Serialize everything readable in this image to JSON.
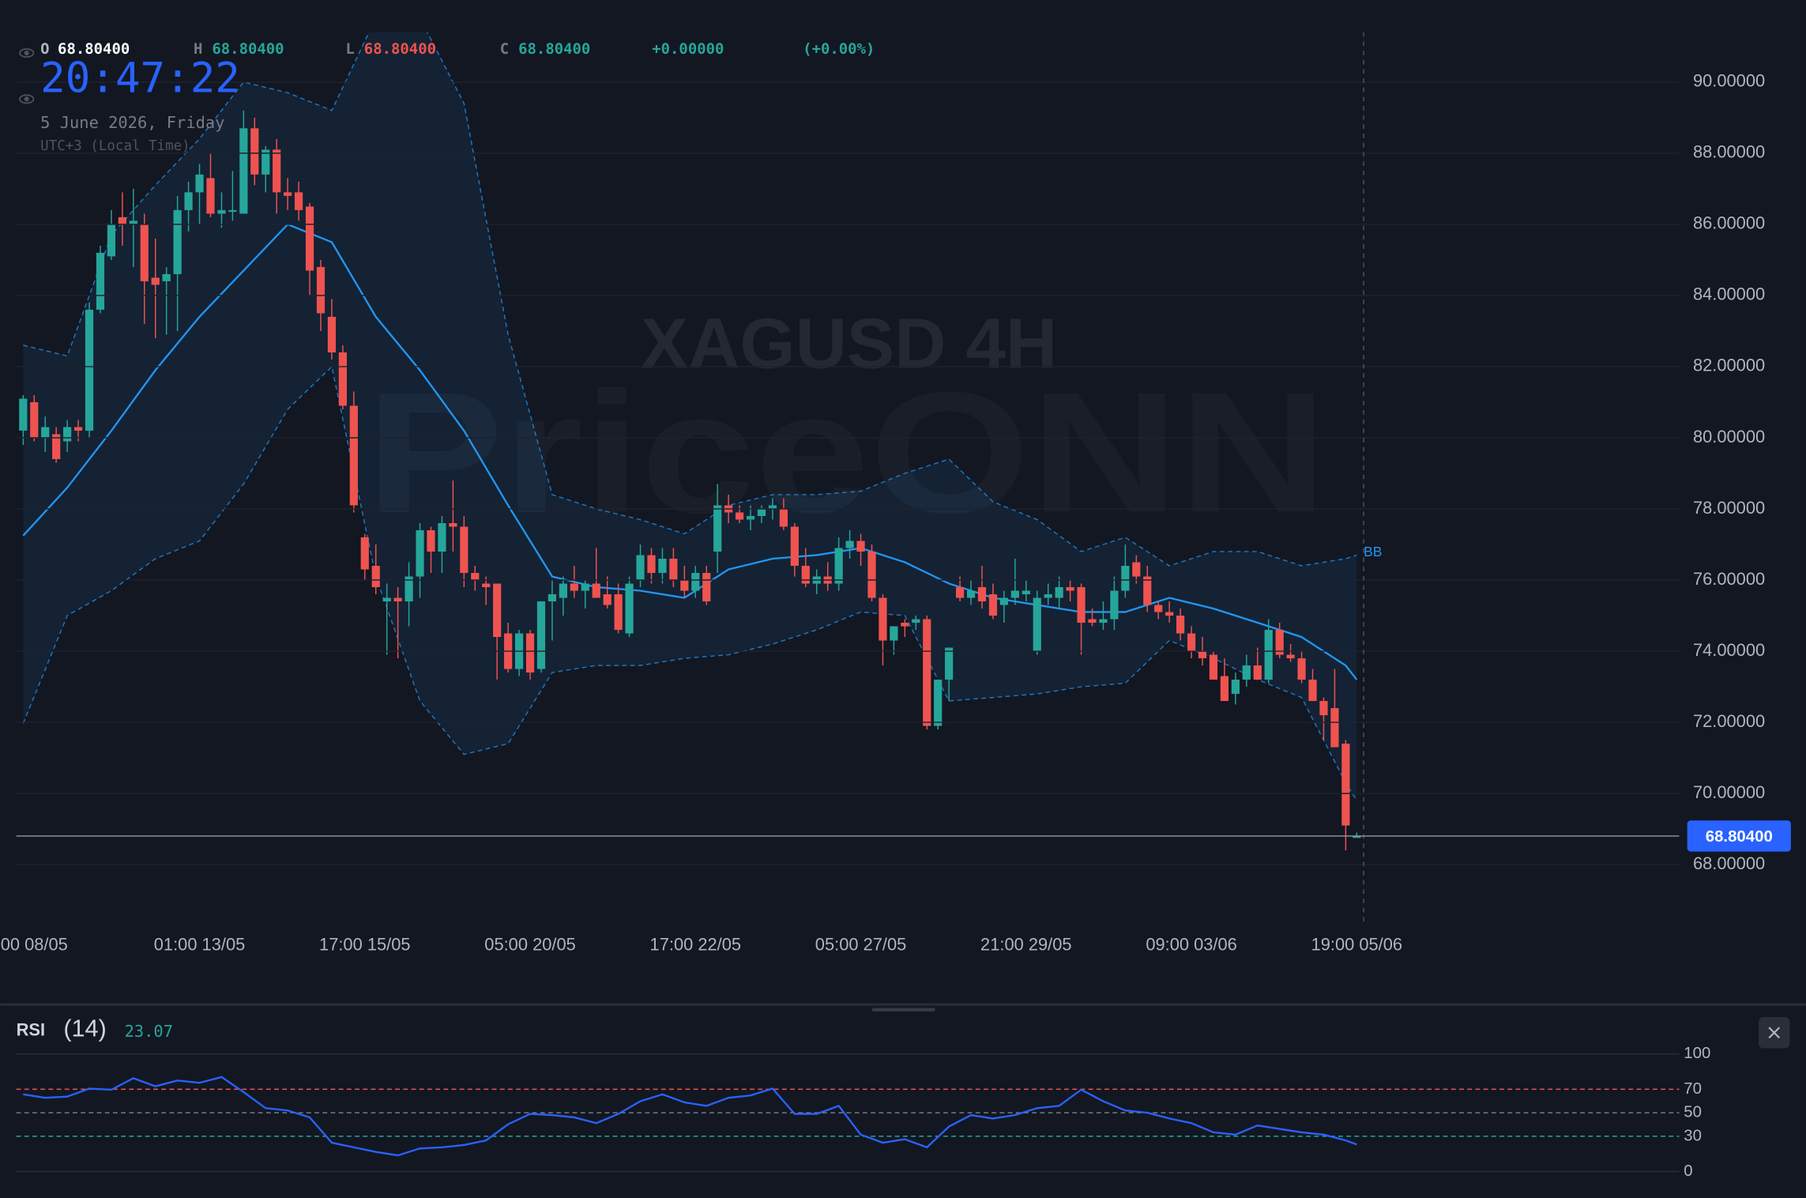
{
  "clock": {
    "time": "20:47:22",
    "date": "5 June 2026, Friday",
    "zone": "UTC+3 (Local Time)"
  },
  "chart_data": [
    {
      "type": "candlestick",
      "title": "XAGUSD 4H",
      "watermark": "PriceONN",
      "legend": {
        "open_label": "O",
        "open": "68.80400",
        "high_label": "H",
        "high": "68.80400",
        "low_label": "L",
        "low": "68.80400",
        "close_label": "C",
        "close": "68.80400",
        "change": "+0.00000",
        "change_pct": "(+0.00%)"
      },
      "up_color": "#26a69a",
      "down_color": "#ef5350",
      "grid": true,
      "ylim": [
        66.4,
        91.4
      ],
      "yticks": [
        {
          "value": 68,
          "label": "68.00000"
        },
        {
          "value": 70,
          "label": "70.00000"
        },
        {
          "value": 72,
          "label": "72.00000"
        },
        {
          "value": 74,
          "label": "74.00000"
        },
        {
          "value": 76,
          "label": "76.00000"
        },
        {
          "value": 78,
          "label": "78.00000"
        },
        {
          "value": 80,
          "label": "80.00000"
        },
        {
          "value": 82,
          "label": "82.00000"
        },
        {
          "value": 84,
          "label": "84.00000"
        },
        {
          "value": 86,
          "label": "86.00000"
        },
        {
          "value": 88,
          "label": "88.00000"
        },
        {
          "value": 90,
          "label": "90.00000"
        }
      ],
      "categories": [
        null,
        "00 08/05",
        null,
        null,
        null,
        null,
        null,
        null,
        null,
        null,
        null,
        null,
        null,
        null,
        null,
        null,
        "01:00 13/05",
        null,
        null,
        null,
        null,
        null,
        null,
        null,
        null,
        null,
        null,
        null,
        null,
        null,
        null,
        "17:00 15/05",
        null,
        null,
        null,
        null,
        null,
        null,
        null,
        null,
        null,
        null,
        null,
        null,
        null,
        null,
        "05:00 20/05",
        null,
        null,
        null,
        null,
        null,
        null,
        null,
        null,
        null,
        null,
        null,
        null,
        null,
        null,
        "17:00 22/05",
        null,
        null,
        null,
        null,
        null,
        null,
        null,
        null,
        null,
        null,
        null,
        null,
        null,
        null,
        "05:00 27/05",
        null,
        null,
        null,
        null,
        null,
        null,
        null,
        null,
        null,
        null,
        null,
        null,
        null,
        null,
        "21:00 29/05",
        null,
        null,
        null,
        null,
        null,
        null,
        null,
        null,
        null,
        null,
        null,
        null,
        null,
        null,
        "09:00 03/06",
        null,
        null,
        null,
        null,
        null,
        null,
        null,
        null,
        null,
        null,
        null,
        null,
        null,
        null,
        "19:00 05/06"
      ],
      "ohlc": [
        [
          80.2,
          81.2,
          79.8,
          81.1
        ],
        [
          81.0,
          81.2,
          79.9,
          80.0
        ],
        [
          80.0,
          80.6,
          79.6,
          80.3
        ],
        [
          80.1,
          80.3,
          79.3,
          79.4
        ],
        [
          79.9,
          80.5,
          79.6,
          80.3
        ],
        [
          80.3,
          80.5,
          79.9,
          80.2
        ],
        [
          80.2,
          83.8,
          80.0,
          83.6
        ],
        [
          83.6,
          85.4,
          83.5,
          85.2
        ],
        [
          85.1,
          86.4,
          85.0,
          86.0
        ],
        [
          86.2,
          86.9,
          85.4,
          86.0
        ],
        [
          86.0,
          87.0,
          84.8,
          86.1
        ],
        [
          86.0,
          86.3,
          83.2,
          84.4
        ],
        [
          84.5,
          85.6,
          82.8,
          84.3
        ],
        [
          84.4,
          84.8,
          82.9,
          84.6
        ],
        [
          84.6,
          86.8,
          83.0,
          86.4
        ],
        [
          86.4,
          87.2,
          85.8,
          86.9
        ],
        [
          86.9,
          87.7,
          86.0,
          87.4
        ],
        [
          87.3,
          88.0,
          86.2,
          86.3
        ],
        [
          86.3,
          86.9,
          85.9,
          86.4
        ],
        [
          86.4,
          87.5,
          86.1,
          86.4
        ],
        [
          86.3,
          89.2,
          86.3,
          88.7
        ],
        [
          88.7,
          89.0,
          87.1,
          87.4
        ],
        [
          87.4,
          88.2,
          86.9,
          88.1
        ],
        [
          88.1,
          88.4,
          86.3,
          86.9
        ],
        [
          86.9,
          87.3,
          86.4,
          86.8
        ],
        [
          86.9,
          87.2,
          86.1,
          86.4
        ],
        [
          86.5,
          86.6,
          84.0,
          84.7
        ],
        [
          84.8,
          85.0,
          83.0,
          83.5
        ],
        [
          83.4,
          83.9,
          82.2,
          82.4
        ],
        [
          82.4,
          82.6,
          80.8,
          80.9
        ],
        [
          80.9,
          81.3,
          77.9,
          78.1
        ],
        [
          77.2,
          77.3,
          76.0,
          76.3
        ],
        [
          76.4,
          77.0,
          75.6,
          75.8
        ],
        [
          75.4,
          75.9,
          73.9,
          75.5
        ],
        [
          75.5,
          75.8,
          73.8,
          75.4
        ],
        [
          75.4,
          76.5,
          74.7,
          76.1
        ],
        [
          76.1,
          77.6,
          75.5,
          77.4
        ],
        [
          77.4,
          77.5,
          76.2,
          76.8
        ],
        [
          76.8,
          77.8,
          76.2,
          77.6
        ],
        [
          77.6,
          78.8,
          76.8,
          77.5
        ],
        [
          77.5,
          77.8,
          75.8,
          76.2
        ],
        [
          76.2,
          76.4,
          75.7,
          76.0
        ],
        [
          75.9,
          76.1,
          75.3,
          75.8
        ],
        [
          75.9,
          75.9,
          73.2,
          74.4
        ],
        [
          74.5,
          74.8,
          73.4,
          73.5
        ],
        [
          73.5,
          74.6,
          73.3,
          74.5
        ],
        [
          74.5,
          74.6,
          73.2,
          73.4
        ],
        [
          73.5,
          75.4,
          73.4,
          75.4
        ],
        [
          75.4,
          76.0,
          74.3,
          75.6
        ],
        [
          75.5,
          76.1,
          75.0,
          75.9
        ],
        [
          75.9,
          76.4,
          75.5,
          75.7
        ],
        [
          75.7,
          76.0,
          75.2,
          75.9
        ],
        [
          75.9,
          76.9,
          75.6,
          75.5
        ],
        [
          75.6,
          76.1,
          75.2,
          75.3
        ],
        [
          75.6,
          75.9,
          74.5,
          74.6
        ],
        [
          74.5,
          76.1,
          74.4,
          75.9
        ],
        [
          76.0,
          77.0,
          75.8,
          76.7
        ],
        [
          76.7,
          76.9,
          75.9,
          76.2
        ],
        [
          76.2,
          76.9,
          75.9,
          76.6
        ],
        [
          76.6,
          76.9,
          75.8,
          76.0
        ],
        [
          76.0,
          76.4,
          75.5,
          75.7
        ],
        [
          75.7,
          76.4,
          75.5,
          76.2
        ],
        [
          76.2,
          76.4,
          75.3,
          75.4
        ],
        [
          76.8,
          78.7,
          76.2,
          78.1
        ],
        [
          78.1,
          78.4,
          77.6,
          77.9
        ],
        [
          77.9,
          78.1,
          77.6,
          77.7
        ],
        [
          77.7,
          78.1,
          77.4,
          77.8
        ],
        [
          77.8,
          78.1,
          77.6,
          78.0
        ],
        [
          78.0,
          78.3,
          77.7,
          78.1
        ],
        [
          78.0,
          78.3,
          77.4,
          77.5
        ],
        [
          77.5,
          77.6,
          76.1,
          76.4
        ],
        [
          76.4,
          76.9,
          75.8,
          75.9
        ],
        [
          75.9,
          76.3,
          75.6,
          76.1
        ],
        [
          76.1,
          76.5,
          75.7,
          75.9
        ],
        [
          75.9,
          77.2,
          75.7,
          76.9
        ],
        [
          76.9,
          77.4,
          76.6,
          77.1
        ],
        [
          77.1,
          77.3,
          76.4,
          76.8
        ],
        [
          76.8,
          77.0,
          75.4,
          75.5
        ],
        [
          75.5,
          75.6,
          73.6,
          74.3
        ],
        [
          74.3,
          74.7,
          73.9,
          74.7
        ],
        [
          74.8,
          74.9,
          74.4,
          74.7
        ],
        [
          74.8,
          75.0,
          74.6,
          74.9
        ],
        [
          74.9,
          75.0,
          71.8,
          71.9
        ],
        [
          71.9,
          73.2,
          71.8,
          73.2
        ],
        [
          73.2,
          74.1,
          72.6,
          74.1
        ],
        [
          75.8,
          76.1,
          75.4,
          75.5
        ],
        [
          75.5,
          76.0,
          75.3,
          75.7
        ],
        [
          75.8,
          76.4,
          75.2,
          75.4
        ],
        [
          75.6,
          75.9,
          74.9,
          75.0
        ],
        [
          75.3,
          75.7,
          74.8,
          75.5
        ],
        [
          75.5,
          76.6,
          75.3,
          75.7
        ],
        [
          75.6,
          76.0,
          75.4,
          75.7
        ],
        [
          74.0,
          75.7,
          73.9,
          75.5
        ],
        [
          75.5,
          75.9,
          75.3,
          75.6
        ],
        [
          75.5,
          76.1,
          75.2,
          75.8
        ],
        [
          75.8,
          76.0,
          75.4,
          75.7
        ],
        [
          75.8,
          75.9,
          73.9,
          74.8
        ],
        [
          74.9,
          75.2,
          74.7,
          74.8
        ],
        [
          74.8,
          75.4,
          74.6,
          74.9
        ],
        [
          74.9,
          76.1,
          74.6,
          75.7
        ],
        [
          75.7,
          77.0,
          75.5,
          76.4
        ],
        [
          76.5,
          76.7,
          75.9,
          76.1
        ],
        [
          76.1,
          76.4,
          75.1,
          75.3
        ],
        [
          75.3,
          75.4,
          74.9,
          75.1
        ],
        [
          75.1,
          75.4,
          74.8,
          75.0
        ],
        [
          75.0,
          75.2,
          74.3,
          74.5
        ],
        [
          74.5,
          74.7,
          73.8,
          74.0
        ],
        [
          74.0,
          74.4,
          73.6,
          73.8
        ],
        [
          73.9,
          74.0,
          73.2,
          73.2
        ],
        [
          73.3,
          73.8,
          72.6,
          72.6
        ],
        [
          72.8,
          73.4,
          72.5,
          73.2
        ],
        [
          73.2,
          73.9,
          73.0,
          73.6
        ],
        [
          73.6,
          74.1,
          73.2,
          73.2
        ],
        [
          73.2,
          74.9,
          73.1,
          74.6
        ],
        [
          74.6,
          74.8,
          73.8,
          73.9
        ],
        [
          73.9,
          74.2,
          73.7,
          73.8
        ],
        [
          73.8,
          74.0,
          73.1,
          73.2
        ],
        [
          73.2,
          73.5,
          72.6,
          72.6
        ],
        [
          72.6,
          72.7,
          71.5,
          72.2
        ],
        [
          72.4,
          73.5,
          71.4,
          71.3
        ],
        [
          71.4,
          71.5,
          68.4,
          69.1
        ],
        [
          68.8,
          68.9,
          68.8,
          68.8
        ]
      ],
      "bands": {
        "name": "BB",
        "color": "#2196f3",
        "x": [
          0,
          4,
          8,
          12,
          16,
          20,
          24,
          28,
          32,
          36,
          40,
          44,
          48,
          52,
          56,
          60,
          64,
          68,
          72,
          76,
          80,
          84,
          88,
          92,
          96,
          100,
          104,
          108,
          112,
          116,
          120,
          121
        ],
        "upper": [
          82.6,
          82.3,
          85.7,
          87.1,
          88.4,
          90.0,
          89.7,
          89.2,
          91.8,
          91.8,
          89.4,
          82.9,
          78.4,
          78.0,
          77.7,
          77.3,
          78.1,
          78.4,
          78.4,
          78.5,
          79.0,
          79.4,
          78.2,
          77.7,
          76.8,
          77.2,
          76.4,
          76.8,
          76.8,
          76.4,
          76.6,
          76.7
        ],
        "middle": [
          77.25,
          78.6,
          80.2,
          81.9,
          83.4,
          84.7,
          86.0,
          85.5,
          83.4,
          81.9,
          80.2,
          78.1,
          76.1,
          75.8,
          75.7,
          75.5,
          76.3,
          76.6,
          76.7,
          76.9,
          76.5,
          75.9,
          75.5,
          75.3,
          75.1,
          75.1,
          75.5,
          75.2,
          74.8,
          74.4,
          73.6,
          73.2
        ],
        "lower": [
          71.97,
          75.0,
          75.7,
          76.6,
          77.1,
          78.7,
          80.8,
          82.0,
          76.1,
          72.6,
          71.1,
          71.4,
          73.4,
          73.6,
          73.6,
          73.8,
          73.9,
          74.2,
          74.6,
          75.1,
          75.0,
          72.6,
          72.7,
          72.8,
          73.0,
          73.1,
          74.3,
          73.8,
          73.2,
          72.7,
          70.3,
          69.8
        ]
      },
      "last_price": {
        "value": 68.804,
        "label": "68.80400"
      }
    },
    {
      "type": "line",
      "title": "RSI",
      "subtitle": "(14)",
      "color": "#2962ff",
      "ylim": [
        0,
        100
      ],
      "yticks": [
        0,
        30,
        50,
        70,
        100
      ],
      "level_colors": [
        "#2a2e39",
        "#26a69a",
        "#787b86",
        "#ef5350",
        "#2a2e39"
      ],
      "level_dashed": [
        false,
        true,
        true,
        true,
        false
      ],
      "x": [
        0,
        2,
        4,
        6,
        8,
        10,
        12,
        14,
        16,
        18,
        20,
        22,
        24,
        26,
        28,
        30,
        32,
        34,
        36,
        38,
        40,
        42,
        44,
        46,
        48,
        50,
        52,
        54,
        56,
        58,
        60,
        62,
        64,
        66,
        68,
        70,
        72,
        74,
        76,
        78,
        80,
        82,
        84,
        86,
        88,
        90,
        92,
        94,
        96,
        98,
        100,
        102,
        104,
        106,
        108,
        110,
        112,
        114,
        116,
        118,
        120,
        121
      ],
      "values": [
        65.7,
        62.7,
        63.7,
        70.6,
        69.6,
        79.4,
        72.5,
        77.5,
        75.5,
        80.4,
        67.6,
        53.9,
        52.0,
        46.1,
        24.5,
        20.6,
        16.7,
        13.7,
        19.6,
        20.6,
        22.5,
        26.5,
        40.2,
        49.0,
        48.0,
        46.1,
        41.2,
        49.0,
        59.8,
        65.7,
        58.8,
        55.9,
        62.7,
        64.7,
        70.6,
        49.0,
        49.0,
        55.9,
        31.4,
        24.5,
        27.5,
        20.6,
        38.2,
        48.0,
        45.1,
        48.0,
        53.9,
        55.9,
        69.6,
        59.8,
        52.0,
        50.0,
        45.1,
        41.2,
        33.3,
        31.4,
        39.2,
        36.3,
        33.3,
        31.4,
        26.5,
        23.07
      ]
    }
  ]
}
